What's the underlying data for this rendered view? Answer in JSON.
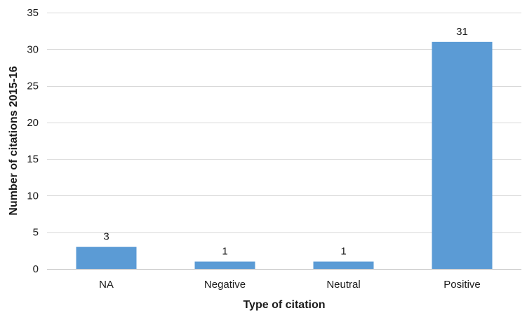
{
  "chart_data": {
    "type": "bar",
    "categories": [
      "NA",
      "Negative",
      "Neutral",
      "Positive"
    ],
    "values": [
      3,
      1,
      1,
      31
    ],
    "data_labels": [
      "3",
      "1",
      "1",
      "31"
    ],
    "xlabel": "Type of citation",
    "ylabel": "Number of citations 2015-16",
    "ylim": [
      0,
      35
    ],
    "yticks": [
      0,
      5,
      10,
      15,
      20,
      25,
      30,
      35
    ],
    "grid": true,
    "bar_color": "#5b9bd5"
  }
}
